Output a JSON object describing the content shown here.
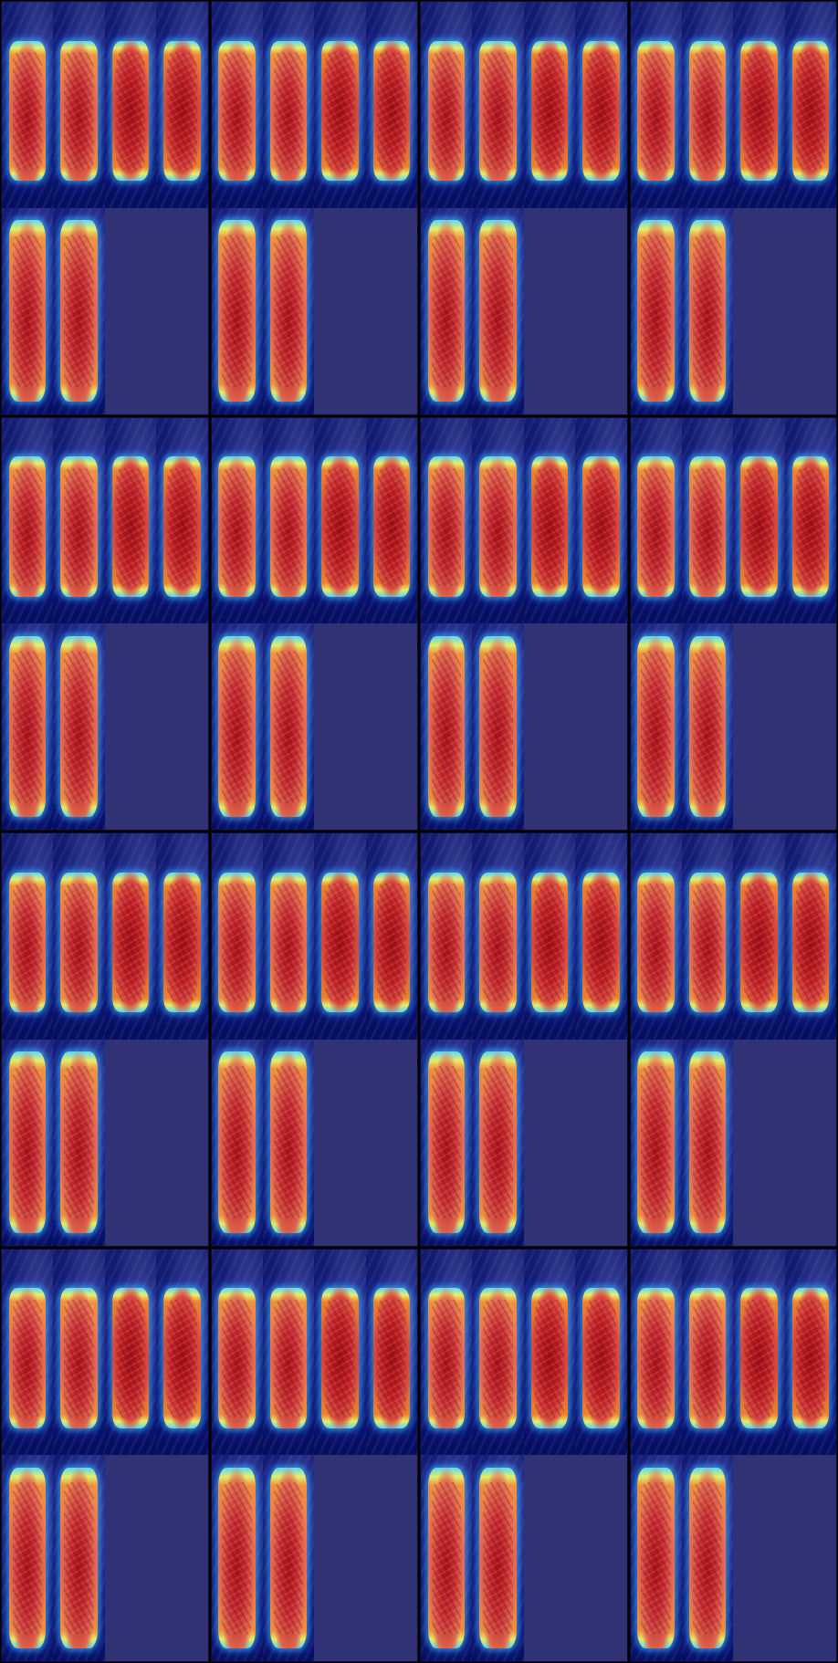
{
  "panels": [
    {
      "filled_frames": 6
    },
    {
      "filled_frames": 6
    },
    {
      "filled_frames": 6
    },
    {
      "filled_frames": 6
    },
    {
      "filled_frames": 6
    },
    {
      "filled_frames": 6
    },
    {
      "filled_frames": 6
    },
    {
      "filled_frames": 6
    },
    {
      "filled_frames": 6
    },
    {
      "filled_frames": 6
    },
    {
      "filled_frames": 6
    },
    {
      "filled_frames": 6
    },
    {
      "filled_frames": 6
    },
    {
      "filled_frames": 6
    },
    {
      "filled_frames": 6
    },
    {
      "filled_frames": 6
    }
  ],
  "colors": {
    "background": "#000000",
    "empty_frame": "#313276",
    "heat_core": "#b40f0f",
    "heat_edge": "#5ee7ff"
  }
}
